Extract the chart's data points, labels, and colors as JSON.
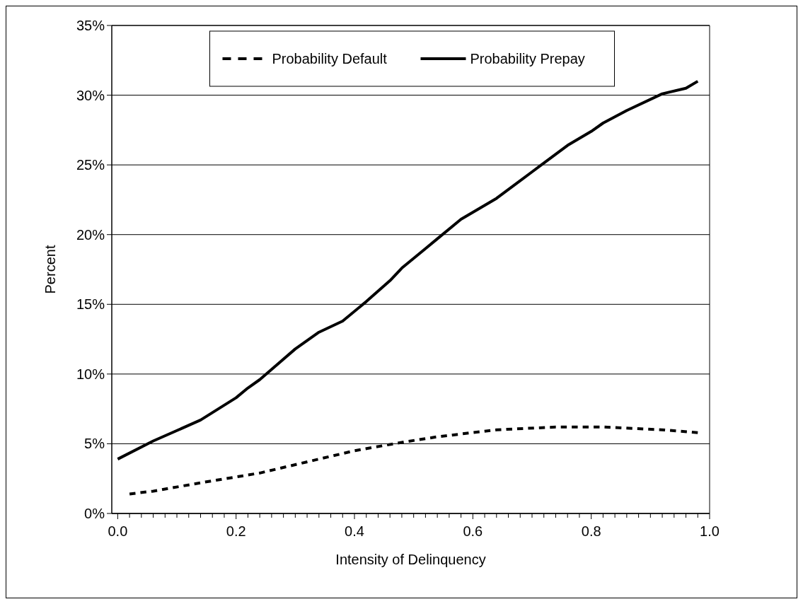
{
  "chart_data": {
    "type": "line",
    "xlabel": "Intensity of Delinquency",
    "ylabel": "Percent",
    "xlim": [
      -0.01,
      1.0
    ],
    "xticks": [
      {
        "value": 0,
        "label": "0.0"
      },
      {
        "value": 0.02,
        "label": null
      },
      {
        "value": 0.04,
        "label": null
      },
      {
        "value": 0.06,
        "label": null
      },
      {
        "value": 0.08,
        "label": null
      },
      {
        "value": 0.1,
        "label": null
      },
      {
        "value": 0.12,
        "label": null
      },
      {
        "value": 0.14,
        "label": null
      },
      {
        "value": 0.16,
        "label": null
      },
      {
        "value": 0.18,
        "label": null
      },
      {
        "value": 0.2,
        "label": "0.2"
      },
      {
        "value": 0.22,
        "label": null
      },
      {
        "value": 0.24,
        "label": null
      },
      {
        "value": 0.26,
        "label": null
      },
      {
        "value": 0.28,
        "label": null
      },
      {
        "value": 0.3,
        "label": null
      },
      {
        "value": 0.32,
        "label": null
      },
      {
        "value": 0.34,
        "label": null
      },
      {
        "value": 0.36,
        "label": null
      },
      {
        "value": 0.38,
        "label": null
      },
      {
        "value": 0.4,
        "label": "0.4"
      },
      {
        "value": 0.42,
        "label": null
      },
      {
        "value": 0.44,
        "label": null
      },
      {
        "value": 0.46,
        "label": null
      },
      {
        "value": 0.48,
        "label": null
      },
      {
        "value": 0.5,
        "label": null
      },
      {
        "value": 0.52,
        "label": null
      },
      {
        "value": 0.54,
        "label": null
      },
      {
        "value": 0.56,
        "label": null
      },
      {
        "value": 0.58,
        "label": null
      },
      {
        "value": 0.6,
        "label": "0.6"
      },
      {
        "value": 0.62,
        "label": null
      },
      {
        "value": 0.64,
        "label": null
      },
      {
        "value": 0.66,
        "label": null
      },
      {
        "value": 0.68,
        "label": null
      },
      {
        "value": 0.7,
        "label": null
      },
      {
        "value": 0.72,
        "label": null
      },
      {
        "value": 0.74,
        "label": null
      },
      {
        "value": 0.76,
        "label": null
      },
      {
        "value": 0.78,
        "label": null
      },
      {
        "value": 0.8,
        "label": "0.8"
      },
      {
        "value": 0.82,
        "label": null
      },
      {
        "value": 0.84,
        "label": null
      },
      {
        "value": 0.86,
        "label": null
      },
      {
        "value": 0.88,
        "label": null
      },
      {
        "value": 0.9,
        "label": null
      },
      {
        "value": 0.92,
        "label": null
      },
      {
        "value": 0.94,
        "label": null
      },
      {
        "value": 0.96,
        "label": null
      },
      {
        "value": 0.98,
        "label": null
      },
      {
        "value": 1.0,
        "label": "1.0"
      }
    ],
    "ylim": [
      0,
      35
    ],
    "yticks": [
      {
        "value": 0,
        "label": "0%"
      },
      {
        "value": 5,
        "label": "5%"
      },
      {
        "value": 10,
        "label": "10%"
      },
      {
        "value": 15,
        "label": "15%"
      },
      {
        "value": 20,
        "label": "20%"
      },
      {
        "value": 25,
        "label": "25%"
      },
      {
        "value": 30,
        "label": "30%"
      },
      {
        "value": 35,
        "label": "35%"
      }
    ],
    "grid": "y",
    "legend": "top",
    "series": [
      {
        "name": "Probability Default",
        "color": "#000000",
        "line_style": "dashed",
        "x": [
          0.02,
          0.06,
          0.14,
          0.24,
          0.3,
          0.4,
          0.48,
          0.54,
          0.64,
          0.74,
          0.82,
          0.92,
          0.98
        ],
        "values": [
          1.4,
          1.6,
          2.2,
          2.9,
          3.5,
          4.5,
          5.1,
          5.5,
          6.0,
          6.2,
          6.2,
          6.0,
          5.8
        ]
      },
      {
        "name": "Probability Prepay",
        "color": "#000000",
        "line_style": "solid",
        "x": [
          0,
          0.06,
          0.14,
          0.2,
          0.22,
          0.24,
          0.3,
          0.34,
          0.38,
          0.42,
          0.46,
          0.48,
          0.52,
          0.54,
          0.58,
          0.64,
          0.7,
          0.76,
          0.8,
          0.82,
          0.86,
          0.92,
          0.96,
          0.98
        ],
        "values": [
          3.9,
          5.2,
          6.7,
          8.3,
          9.0,
          9.6,
          11.8,
          13.0,
          13.8,
          15.2,
          16.7,
          17.6,
          19.0,
          19.7,
          21.1,
          22.6,
          24.5,
          26.4,
          27.4,
          28.0,
          28.9,
          30.1,
          30.5,
          31.0
        ]
      }
    ]
  }
}
